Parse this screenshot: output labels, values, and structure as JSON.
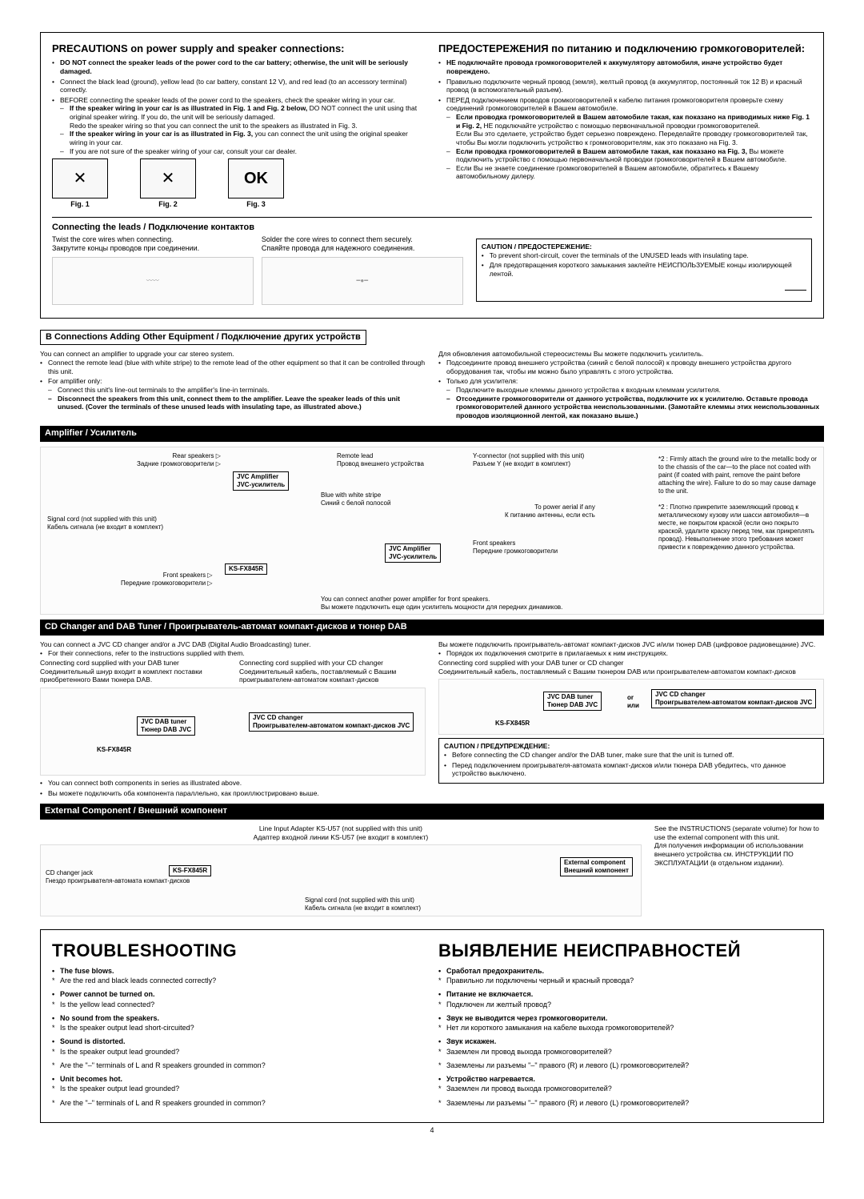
{
  "precautions": {
    "title_en": "PRECAUTIONS on power supply and speaker connections:",
    "title_ru": "ПРЕДОСТЕРЕЖЕНИЯ по питанию и подключению громкоговорителей:",
    "en_b1": "DO NOT connect the speaker leads of the power cord to the car battery; otherwise, the unit will be seriously damaged.",
    "en_b2": "Connect the black lead (ground), yellow lead (to car battery, constant 12 V), and red lead (to an accessory terminal) correctly.",
    "en_b3": "BEFORE connecting the speaker leads of the power cord to the speakers, check the speaker wiring in your car.",
    "en_d1a": "If the speaker wiring in your car is as illustrated in Fig. 1 and Fig. 2 below,",
    "en_d1b": " DO NOT connect the unit using that original speaker wiring. If you do, the unit will be seriously damaged.",
    "en_d1c": "Redo the speaker wiring so that you can connect the unit to the speakers as illustrated in Fig. 3.",
    "en_d2a": "If the speaker wiring in your car is as illustrated in Fig. 3,",
    "en_d2b": " you can connect the unit using the original speaker wiring in your car.",
    "en_d3": "If you are not sure of the speaker wiring of your car, consult your car dealer.",
    "ru_b1": "НЕ подключайте провода громкоговорителей к аккумулятору автомобиля, иначе устройство будет повреждено.",
    "ru_b2": "Правильно подключите черный провод (земля), желтый провод (в аккумулятор, постоянный ток 12 В) и красный провод (в вспомогательный разъем).",
    "ru_b3": "ПЕРЕД подключением проводов громкоговорителей к кабелю питания громкоговорителя проверьте схему соединений громкоговорителей в Вашем автомобиле.",
    "ru_d1a": "Если проводка громкоговорителей в Вашем автомобиле такая, как показано на приводимых ниже Fig. 1 и Fig. 2,",
    "ru_d1b": " НЕ подключайте устройство с помощью первоначальной проводки громкоговорителей.",
    "ru_d1c": "Если Вы это сделаете, устройство будет серьезно повреждено. Переделайте проводку громкоговорителей так, чтобы Вы могли подключить устройство к громкоговорителям, как это показано на Fig. 3.",
    "ru_d2a": "Если проводка громкоговорителей в Вашем автомобиле такая, как показано на Fig. 3,",
    "ru_d2b": " Вы можете подключить устройство с помощью первоначальной проводки громкоговорителей в Вашем автомобиле.",
    "ru_d3": "Если Вы не знаете соединение громкоговорителей в Вашем автомобиле, обратитесь к Вашему автомобильному дилеру.",
    "fig1": "Fig. 1",
    "fig2": "Fig. 2",
    "fig3": "Fig. 3"
  },
  "connecting": {
    "title": "Connecting the leads / Подключение контактов",
    "twist_en": "Twist the core wires when connecting.",
    "twist_ru": "Закрутите концы проводов при соединении.",
    "solder_en": "Solder the core wires to connect them securely.",
    "solder_ru": "Спаяйте провода для надежного соединения.",
    "caution_title": "CAUTION / ПРЕДОСТЕРЕЖЕНИЕ:",
    "caution_en": "To prevent short-circuit, cover the terminals of the UNUSED leads with insulating tape.",
    "caution_ru": "Для предотвращения короткого замыкания заклейте НЕИСПОЛЬЗУЕМЫЕ концы изолирующей лентой."
  },
  "sectionB": {
    "title": "B  Connections Adding Other Equipment / Подключение других устройств",
    "en_intro": "You can connect an amplifier to upgrade your car stereo system.",
    "en_b1": "Connect the remote lead (blue with white stripe) to the remote lead of the other equipment so that it can be controlled through this unit.",
    "en_b2": "For amplifier only:",
    "en_d1": "Connect this unit's line-out terminals to the amplifier's line-in terminals.",
    "en_d2": "Disconnect the speakers from this unit, connect them to the amplifier. Leave the speaker leads of this unit unused. (Cover the terminals of these unused leads with insulating tape, as illustrated above.)",
    "ru_intro": "Для обновления автомобильной стереосистемы Вы можете подключить усилитель.",
    "ru_b1": "Подсоедините провод внешнего устройства (синий с белой полосой) к проводу внешнего устройства другого оборудования так, чтобы им можно было управлять с этого устройства.",
    "ru_b2": "Только для усилителя:",
    "ru_d1": "Подключите выходные клеммы данного устройства к входным клеммам усилителя.",
    "ru_d2": "Отсоедините громкоговорители от данного устройства, подключите их к усилителю. Оставьте провода громкоговорителей данного устройства неиспользованными. (Замотайте клеммы этих неиспользованных проводов изоляционной лентой, как показано выше.)"
  },
  "amp": {
    "title": "Amplifier / Усилитель",
    "rear_en": "Rear speakers",
    "rear_ru": "Задние громкоговорители",
    "front_en": "Front speakers",
    "front_ru": "Передние громкоговорители",
    "jvc_amp_en": "JVC Amplifier",
    "jvc_amp_ru": "JVC-усилитель",
    "remote_en": "Remote lead",
    "remote_ru": "Провод внешнего устройства",
    "blue_en": "Blue with white stripe",
    "blue_ru": "Синий с белой полосой",
    "yconn_en": "Y-connector (not supplied with this unit)",
    "yconn_ru": "Разъем Y (не входит в комплект)",
    "signal_en": "Signal cord (not supplied with this unit)",
    "signal_ru": "Кабель сигнала (не входит в комплект)",
    "aerial_en": "To power aerial if any",
    "aerial_ru": "К питанию антенны, если есть",
    "model": "KS-FX845R",
    "another_en": "You can connect another power amplifier for front speakers.",
    "another_ru": "Вы можете подключить еще один усилитель мощности для передних динамиков.",
    "note2_en": "*2 : Firmly attach the ground wire to the metallic body or to the chassis of the car—to the place not coated with paint (if coated with paint, remove the paint before attaching the wire). Failure to do so may cause damage to the unit.",
    "note2_ru": "*2 : Плотно прикрепите заземляющий провод к металлическому кузову или шасси автомобиля—в месте, не покрытом краской (если оно покрыто краской, удалите краску перед тем, как прикреплять провод). Невыполнение этого требования может привести к повреждению данного устройства."
  },
  "cd": {
    "title": "CD Changer and DAB Tuner / Проигрыватель-автомат компакт-дисков и тюнер DAB",
    "en_intro": "You can connect a JVC CD changer and/or a JVC DAB (Digital Audio Broadcasting) tuner.",
    "en_b1": "For their connections, refer to the instructions supplied with them.",
    "ru_intro": "Вы можете подключить проигрыватель-автомат компакт-дисков JVC и/или тюнер DAB (цифровое радиовещание) JVC.",
    "ru_b1": "Порядок их подключения смотрите в прилагаемых к ним инструкциях.",
    "cord_dab_en": "Connecting cord supplied with your DAB tuner",
    "cord_dab_ru": "Соединительный шнур входит в комплект поставки приобретенного Вами тюнера DAB.",
    "cord_cd_en": "Connecting cord supplied with your CD changer",
    "cord_cd_ru": "Соединительный кабель, поставляемый с Вашим проигрывателем-автоматом компакт-дисков",
    "cord_both_en": "Connecting cord supplied with your DAB tuner or CD changer",
    "cord_both_ru": "Соединительный кабель, поставляемый с Вашим тюнером DAB или проигрывателем-автоматом компакт-дисков",
    "dab_tuner_en": "JVC DAB tuner",
    "dab_tuner_ru": "Тюнер DAB JVC",
    "cd_changer_en": "JVC CD changer",
    "cd_changer_ru": "Проигрывателем-автоматом компакт-дисков JVC",
    "or": "or",
    "or_ru": "или",
    "model": "KS-FX845R",
    "both_en": "You can connect both components in series as illustrated above.",
    "both_ru": "Вы можете подключить оба компонента параллельно, как проиллюстрировано выше.",
    "caution_title": "CAUTION / ПРЕДУПРЕЖДЕНИЕ:",
    "caution_en": "Before connecting the CD changer and/or the DAB tuner, make sure that the unit is turned off.",
    "caution_ru": "Перед подключением проигрывателя-автомата компакт-дисков и/или тюнера DAB убедитесь, что данное устройство выключено."
  },
  "ext": {
    "title": "External Component / Внешний компонент",
    "adapter_en": "Line Input Adapter KS-U57 (not supplied with this unit)",
    "adapter_ru": "Адаптер входной линии KS-U57 (не входит в комплект)",
    "cdjack_en": "CD changer jack",
    "cdjack_ru": "Гнездо проигрывателя-автомата компакт-дисков",
    "model": "KS-FX845R",
    "comp_en": "External component",
    "comp_ru": "Внешний компонент",
    "signal_en": "Signal cord (not supplied with this unit)",
    "signal_ru": "Кабель сигнала (не входит в комплект)",
    "instr_en": "See the INSTRUCTIONS (separate volume) for how to use the external component with this unit.",
    "instr_ru": "Для получения информации об использовании внешнего устройства см. ИНСТРУКЦИИ ПО ЭКСПЛУАТАЦИИ (в отдельном издании)."
  },
  "trouble": {
    "title_en": "TROUBLESHOOTING",
    "title_ru": "ВЫЯВЛЕНИЕ НЕИСПРАВНОСТЕЙ",
    "items_en": [
      {
        "h": "The fuse blows.",
        "q": [
          "Are the red and black leads connected correctly?"
        ]
      },
      {
        "h": "Power cannot be turned on.",
        "q": [
          "Is the yellow lead connected?"
        ]
      },
      {
        "h": "No sound from the speakers.",
        "q": [
          "Is the speaker output lead short-circuited?"
        ]
      },
      {
        "h": "Sound is distorted.",
        "q": [
          "Is the speaker output lead grounded?",
          "Are the \"–\" terminals of L and R speakers grounded in common?"
        ]
      },
      {
        "h": "Unit becomes hot.",
        "q": [
          "Is the speaker output lead grounded?",
          "Are the \"–\" terminals of L and R speakers grounded in common?"
        ]
      }
    ],
    "items_ru": [
      {
        "h": "Сработал предохранитель.",
        "q": [
          "Правильно ли подключены черный и красный провода?"
        ]
      },
      {
        "h": "Питание не включается.",
        "q": [
          "Подключен ли желтый провод?"
        ]
      },
      {
        "h": "Звук не выводится через громкоговорители.",
        "q": [
          "Нет ли короткого замыкания на кабеле выхода громкоговорителей?"
        ]
      },
      {
        "h": "Звук искажен.",
        "q": [
          "Заземлен ли провод выхода громкоговорителей?",
          "Заземлены ли разъемы \"–\" правого (R) и левого (L) громкоговорителей?"
        ]
      },
      {
        "h": "Устройство нагревается.",
        "q": [
          "Заземлен ли провод выхода громкоговорителей?",
          "Заземлены ли разъемы \"–\" правого (R) и левого (L) громкоговорителей?"
        ]
      }
    ]
  },
  "pagenum": "4"
}
